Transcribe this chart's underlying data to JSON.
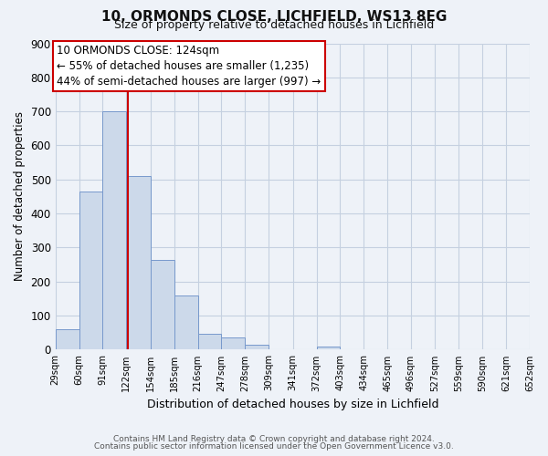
{
  "title": "10, ORMONDS CLOSE, LICHFIELD, WS13 8EG",
  "subtitle": "Size of property relative to detached houses in Lichfield",
  "xlabel": "Distribution of detached houses by size in Lichfield",
  "ylabel": "Number of detached properties",
  "bin_edges": [
    29,
    60,
    91,
    122,
    154,
    185,
    216,
    247,
    278,
    309,
    341,
    372,
    403,
    434,
    465,
    496,
    527,
    559,
    590,
    621,
    652
  ],
  "bin_labels": [
    "29sqm",
    "60sqm",
    "91sqm",
    "122sqm",
    "154sqm",
    "185sqm",
    "216sqm",
    "247sqm",
    "278sqm",
    "309sqm",
    "341sqm",
    "372sqm",
    "403sqm",
    "434sqm",
    "465sqm",
    "496sqm",
    "527sqm",
    "559sqm",
    "590sqm",
    "621sqm",
    "652sqm"
  ],
  "counts": [
    60,
    465,
    700,
    510,
    265,
    160,
    48,
    35,
    15,
    0,
    0,
    10,
    0,
    0,
    0,
    0,
    0,
    0,
    0,
    0
  ],
  "bar_facecolor": "#ccd9ea",
  "bar_edgecolor": "#7799cc",
  "grid_color": "#c5d0e0",
  "background_color": "#eef2f8",
  "plot_bg_color": "#eef2f8",
  "marker_value": 124,
  "marker_color": "#cc0000",
  "ylim": [
    0,
    900
  ],
  "yticks": [
    0,
    100,
    200,
    300,
    400,
    500,
    600,
    700,
    800,
    900
  ],
  "annotation_title": "10 ORMONDS CLOSE: 124sqm",
  "annotation_line1": "← 55% of detached houses are smaller (1,235)",
  "annotation_line2": "44% of semi-detached houses are larger (997) →",
  "annotation_box_color": "#ffffff",
  "annotation_box_edge": "#cc0000",
  "footer1": "Contains HM Land Registry data © Crown copyright and database right 2024.",
  "footer2": "Contains public sector information licensed under the Open Government Licence v3.0."
}
